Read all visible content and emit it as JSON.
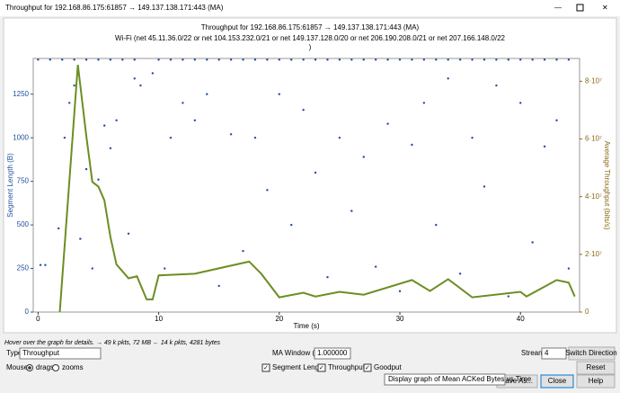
{
  "window_title": "Throughput for 192.168.86.175:61857 → 149.137.138.171:443 (MA)",
  "chart_data": {
    "type": "scatter",
    "title": "Throughput for 192.168.86.175:61857 → 149.137.138.171:443 (MA)",
    "subtitle": [
      "Wi-Fi (net 45.11.36.0/22 or net 104.153.232.0/21 or net 149.137.128.0/20 or net 206.190.208.0/21 or net 207.166.148.0/22",
      ")"
    ],
    "xlabel": "Time (s)",
    "ylabel": "Segment Length (B)",
    "y2label": "Average Throughput (bits/s)",
    "xlim": [
      -0.4,
      44.9
    ],
    "xticks": [
      0,
      10,
      20,
      30,
      40
    ],
    "ylim": [
      0,
      1455
    ],
    "yticks": [
      0,
      250,
      500,
      750,
      1000,
      1250
    ],
    "y2lim": [
      0,
      87900000
    ],
    "y2ticks": [
      0,
      {
        "value": 20000000,
        "label": "2·10⁷"
      },
      {
        "value": 40000000,
        "label": "4·10⁷"
      },
      {
        "value": 60000000,
        "label": "6·10⁷"
      },
      {
        "value": 80000000,
        "label": "8·10⁷"
      }
    ],
    "series": [
      {
        "name": "Segment Length",
        "color": "#1f4e9c",
        "x": [
          0,
          1,
          2,
          3,
          4,
          5,
          6,
          7,
          8,
          10,
          11,
          12,
          13,
          14,
          15,
          16,
          17,
          18,
          19,
          20,
          21,
          22,
          23,
          24,
          25,
          26,
          27,
          28,
          29,
          30,
          31,
          32,
          33,
          34,
          35,
          36,
          37,
          38,
          39,
          40,
          41,
          42,
          43,
          44,
          0.2,
          0.6,
          1.7,
          2.2,
          2.6,
          3,
          3.5,
          4,
          4.5,
          5,
          5.5,
          6,
          6.5,
          7.5,
          8,
          8.5,
          9.5,
          10.5,
          11,
          12,
          13,
          14,
          15,
          16,
          17,
          18,
          19,
          20,
          21,
          22,
          23,
          24,
          25,
          26,
          27,
          28,
          29,
          30,
          31,
          32,
          33,
          34,
          35,
          36,
          37,
          38,
          39,
          40,
          41,
          42,
          43,
          44
        ],
        "values": [
          1448,
          1448,
          1448,
          1448,
          1448,
          1448,
          1448,
          1448,
          1448,
          1448,
          1448,
          1448,
          1448,
          1448,
          1448,
          1448,
          1448,
          1448,
          1448,
          1448,
          1448,
          1448,
          1448,
          1448,
          1448,
          1448,
          1448,
          1448,
          1448,
          1448,
          1448,
          1448,
          1448,
          1448,
          1448,
          1448,
          1448,
          1448,
          1448,
          1448,
          1448,
          1448,
          1448,
          1448,
          270,
          270,
          480,
          1000,
          1200,
          1300,
          420,
          820,
          250,
          760,
          1070,
          940,
          1100,
          450,
          1340,
          1300,
          1370,
          250,
          1000,
          1200,
          1100,
          1250,
          150,
          1020,
          350,
          1000,
          700,
          1250,
          500,
          1160,
          800,
          200,
          1000,
          580,
          890,
          260,
          1080,
          120,
          960,
          1200,
          500,
          1340,
          220,
          1000,
          720,
          1300,
          90,
          1200,
          400,
          950,
          1100,
          250
        ]
      },
      {
        "name": "Throughput",
        "color": "#6b8e23",
        "axis": "y2",
        "x": [
          1.8,
          3.3,
          4,
          4.5,
          5,
          5.5,
          6,
          6.5,
          7.5,
          8.2,
          9,
          9.5,
          10,
          13,
          17.5,
          18.5,
          20,
          22,
          23,
          25,
          27,
          31,
          32.5,
          34,
          36,
          40,
          40.5,
          43,
          44,
          44.5
        ],
        "values": [
          0,
          85700000,
          61000000,
          45100000,
          43500000,
          38700000,
          26000000,
          16500000,
          11700000,
          12400000,
          4400000,
          4400000,
          12700000,
          13300000,
          17500000,
          13300000,
          5100000,
          6700000,
          5400000,
          7000000,
          6000000,
          11100000,
          7300000,
          11400000,
          5100000,
          7000000,
          5400000,
          11100000,
          10200000,
          5400000
        ]
      }
    ]
  },
  "status": "Hover over the graph for details. → 49 k pkts, 72 MB ← 14 k pkts, 4281 bytes",
  "controls": {
    "type_label": "Type",
    "type_value": "Throughput",
    "ma_label": "MA Window (s)",
    "ma_value": "1.000000",
    "stream_label": "Stream",
    "stream_value": "4",
    "switch": "Switch Direction",
    "reset": "Reset",
    "mouse_label": "Mouse",
    "drags": "drags",
    "zooms": "zooms",
    "goodput": "Goodput",
    "tooltip": "Display graph of Mean ACKed Bytes vs Time",
    "save": "Save As...",
    "close": "Close",
    "help": "Help"
  }
}
